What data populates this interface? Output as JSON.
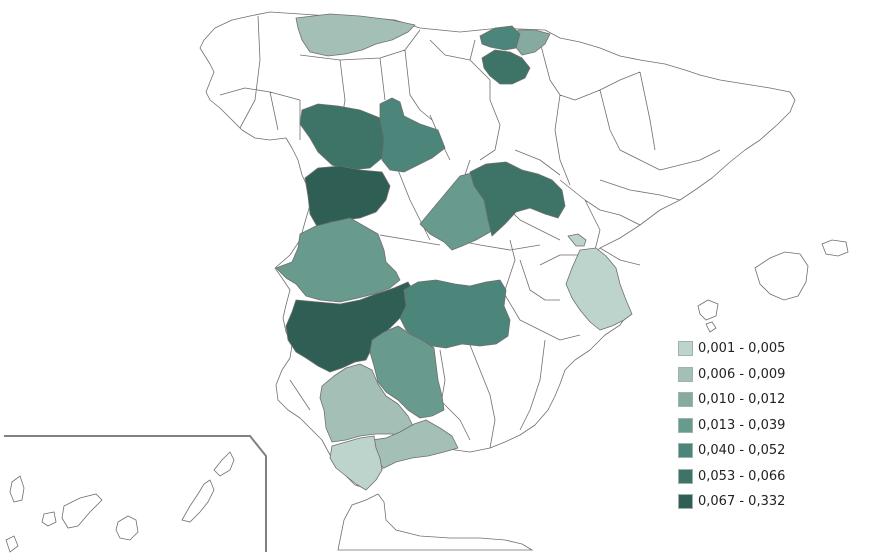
{
  "map": {
    "colors": {
      "background": "#ffffff",
      "border": "#6f6f6f",
      "unfilled": "#ffffff",
      "inset_frame": "#808080"
    },
    "classes": [
      {
        "label": "0,001 - 0,005",
        "color": "#bdd4cc"
      },
      {
        "label": "0,006 - 0,009",
        "color": "#a3bfb6"
      },
      {
        "label": "0,010 - 0,012",
        "color": "#86aaa0"
      },
      {
        "label": "0,013 - 0,039",
        "color": "#689a8d"
      },
      {
        "label": "0,040 - 0,052",
        "color": "#4c8579"
      },
      {
        "label": "0,053 - 0,066",
        "color": "#3d7467"
      },
      {
        "label": "0,067 - 0,332",
        "color": "#2f5f54"
      }
    ],
    "regions": [
      {
        "name": "asturias",
        "class": 1
      },
      {
        "name": "gipuzkoa",
        "class": 2
      },
      {
        "name": "bizkaia",
        "class": 4
      },
      {
        "name": "araba",
        "class": 5
      },
      {
        "name": "leon",
        "class": 5
      },
      {
        "name": "palencia",
        "class": 4
      },
      {
        "name": "zamora",
        "class": 6
      },
      {
        "name": "segovia",
        "class": 3
      },
      {
        "name": "guadalajara",
        "class": 5
      },
      {
        "name": "caceres",
        "class": 3
      },
      {
        "name": "badajoz",
        "class": 6
      },
      {
        "name": "ciudad-real",
        "class": 4
      },
      {
        "name": "cordoba",
        "class": 3
      },
      {
        "name": "sevilla",
        "class": 1
      },
      {
        "name": "malaga",
        "class": 1
      },
      {
        "name": "cadiz",
        "class": 0
      },
      {
        "name": "valencia",
        "class": 0
      },
      {
        "name": "castellon-fragment",
        "class": 0
      }
    ]
  }
}
